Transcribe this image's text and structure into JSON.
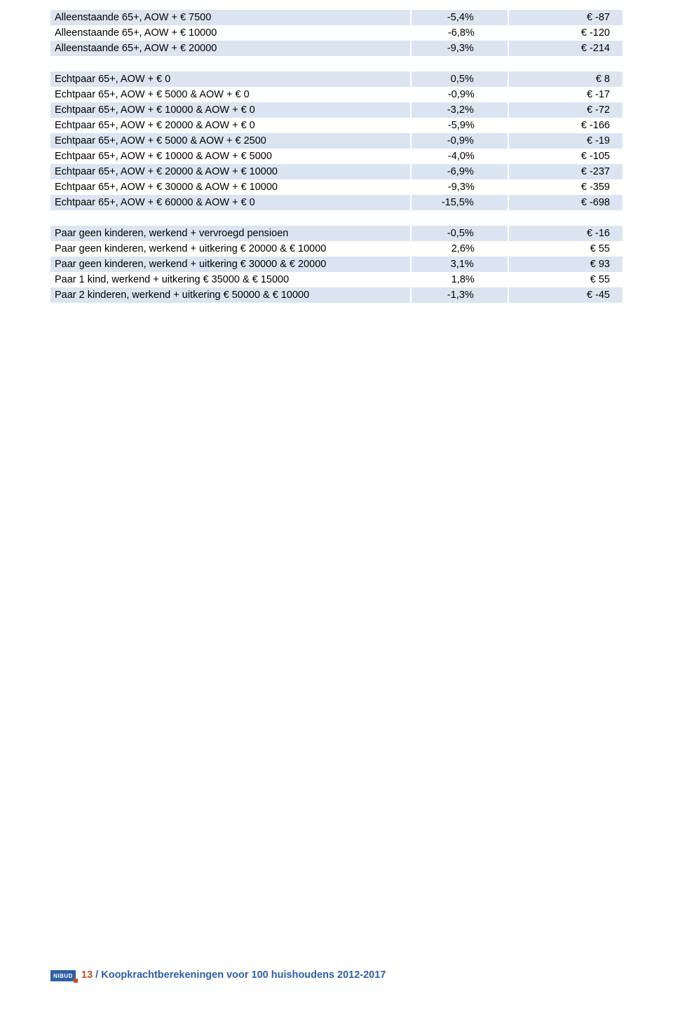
{
  "colors": {
    "band_bg": "#dbe5f1",
    "page_bg": "#ffffff",
    "text": "#000000",
    "row_sep": "#ffffff",
    "logo_bg": "#2f5fa3",
    "logo_accent": "#c05028",
    "footer_pg": "#c05028",
    "footer_rest": "#2f5fa3"
  },
  "table": {
    "rows": [
      {
        "band": true,
        "label": "Alleenstaande 65+, AOW + € 7500",
        "pct": "-5,4%",
        "eur": "€ -87"
      },
      {
        "band": false,
        "label": "Alleenstaande 65+, AOW + € 10000",
        "pct": "-6,8%",
        "eur": "€ -120"
      },
      {
        "band": true,
        "label": "Alleenstaande 65+, AOW + € 20000",
        "pct": "-9,3%",
        "eur": "€ -214"
      },
      {
        "spacer": true
      },
      {
        "band": true,
        "label": "Echtpaar 65+, AOW + € 0",
        "pct": "0,5%",
        "eur": "€ 8"
      },
      {
        "band": false,
        "label": "Echtpaar 65+, AOW + € 5000 & AOW + € 0",
        "pct": "-0,9%",
        "eur": "€ -17"
      },
      {
        "band": true,
        "label": "Echtpaar 65+, AOW + € 10000 & AOW + € 0",
        "pct": "-3,2%",
        "eur": "€ -72"
      },
      {
        "band": false,
        "label": "Echtpaar 65+, AOW + € 20000 & AOW + € 0",
        "pct": "-5,9%",
        "eur": "€ -166"
      },
      {
        "band": true,
        "label": "Echtpaar 65+, AOW + € 5000 & AOW + € 2500",
        "pct": "-0,9%",
        "eur": "€ -19"
      },
      {
        "band": false,
        "label": "Echtpaar 65+, AOW + € 10000 & AOW + € 5000",
        "pct": "-4,0%",
        "eur": "€ -105"
      },
      {
        "band": true,
        "label": "Echtpaar 65+, AOW  + € 20000 & AOW + € 10000",
        "pct": "-6,9%",
        "eur": "€ -237"
      },
      {
        "band": false,
        "label": "Echtpaar 65+, AOW  + € 30000 & AOW + € 10000",
        "pct": "-9,3%",
        "eur": "€ -359"
      },
      {
        "band": true,
        "label": "Echtpaar 65+, AOW + € 60000 & AOW + € 0",
        "pct": "-15,5%",
        "eur": "€ -698"
      },
      {
        "spacer": true
      },
      {
        "band": true,
        "label": "Paar geen kinderen, werkend + vervroegd pensioen",
        "pct": "-0,5%",
        "eur": "€ -16"
      },
      {
        "band": false,
        "label": "Paar geen kinderen, werkend + uitkering  € 20000 &  € 10000",
        "pct": "2,6%",
        "eur": "€ 55"
      },
      {
        "band": true,
        "label": "Paar geen kinderen, werkend + uitkering  € 30000 &  € 20000",
        "pct": "3,1%",
        "eur": "€ 93"
      },
      {
        "band": false,
        "label": "Paar 1 kind, werkend + uitkering  € 35000 &  € 15000",
        "pct": "1,8%",
        "eur": "€ 55"
      },
      {
        "band": true,
        "label": "Paar 2 kinderen, werkend + uitkering  € 50000 &  € 10000",
        "pct": "-1,3%",
        "eur": "€ -45"
      }
    ]
  },
  "footer": {
    "logo_text": "NIBUD",
    "page_number": "13",
    "separator": " / ",
    "title": "Koopkrachtberekeningen voor 100 huishoudens 2012-2017"
  }
}
